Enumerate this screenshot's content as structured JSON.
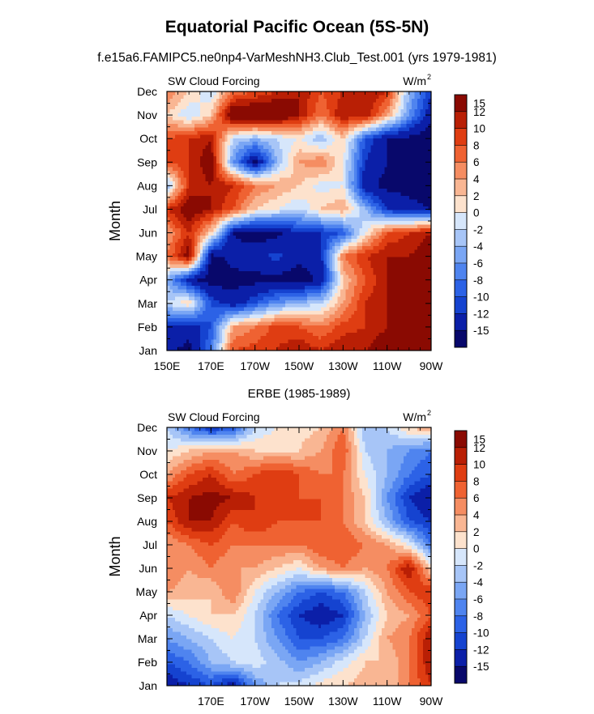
{
  "figure": {
    "title": "Equatorial Pacific Ocean (5S-5N)",
    "subtitle": "f.e15a6.FAMIPC5.ne0np4-VarMeshNH3.Club_Test.001 (yrs 1979-1981)"
  },
  "colorbar": {
    "colors": [
      "#08086b",
      "#0b1fa8",
      "#1543d0",
      "#2c62e6",
      "#4f84ef",
      "#7aa6f4",
      "#a7c5f7",
      "#d6e6fb",
      "#fde2cd",
      "#f9b693",
      "#f58d62",
      "#ef6232",
      "#df3d12",
      "#b91f05",
      "#8a0a02"
    ],
    "labels": [
      "-15",
      "-12",
      "-10",
      "-8",
      "-6",
      "-4",
      "-2",
      "0",
      "2",
      "4",
      "6",
      "8",
      "10",
      "12",
      "15"
    ]
  },
  "chart_data": [
    {
      "type": "heatmap",
      "title": "f.e15a6.FAMIPC5.ne0np4-VarMeshNH3.Club_Test.001 (yrs 1979-1981)",
      "left_label": "SW Cloud Forcing",
      "units_label": "W/m",
      "units_sup": "2",
      "ylabel": "Month",
      "xlim": [
        150,
        270
      ],
      "x_ticks": [
        150,
        170,
        190,
        210,
        230,
        250,
        270
      ],
      "x_tick_labels": [
        "150E",
        "170E",
        "170W",
        "150W",
        "130W",
        "110W",
        "90W"
      ],
      "y_tick_labels": [
        "Jan",
        "Feb",
        "Mar",
        "Apr",
        "May",
        "Jun",
        "Jul",
        "Aug",
        "Sep",
        "Oct",
        "Nov",
        "Dec"
      ],
      "grid_lon_axis": [
        150,
        160,
        170,
        180,
        190,
        200,
        210,
        220,
        230,
        240,
        250,
        260,
        270
      ],
      "levels": [
        -15,
        -12,
        -10,
        -8,
        -6,
        -4,
        -2,
        0,
        2,
        4,
        6,
        8,
        10,
        12,
        15
      ],
      "values": [
        [
          -14,
          -16,
          -8,
          8,
          9,
          10,
          12,
          10,
          12,
          12,
          14,
          15,
          16
        ],
        [
          -13,
          -14,
          -10,
          4,
          6,
          9,
          8,
          6,
          9,
          10,
          12,
          14,
          15
        ],
        [
          -2,
          2,
          -10,
          -14,
          -10,
          -6,
          -4,
          -2,
          4,
          10,
          12,
          15,
          16
        ],
        [
          -4,
          -14,
          -17,
          -16,
          -16,
          -16,
          -17,
          -14,
          2,
          8,
          12,
          14,
          16
        ],
        [
          6,
          14,
          -16,
          -14,
          -13,
          -11,
          -14,
          -13,
          6,
          10,
          12,
          12,
          14
        ],
        [
          4,
          10,
          2,
          -15,
          -17,
          -16,
          -12,
          -12,
          -10,
          0,
          8,
          10,
          12
        ],
        [
          10,
          14,
          12,
          8,
          2,
          0,
          -2,
          2,
          4,
          -4,
          -12,
          -14,
          -15
        ],
        [
          -4,
          10,
          12,
          10,
          6,
          4,
          2,
          -1,
          0,
          -14,
          -16,
          -16,
          -17
        ],
        [
          8,
          10,
          14,
          -6,
          -16,
          -4,
          4,
          6,
          0,
          -12,
          -15,
          -16,
          -17
        ],
        [
          8,
          10,
          12,
          -2,
          -4,
          -2,
          0,
          -4,
          2,
          -10,
          -15,
          -16,
          -17
        ],
        [
          2,
          -2,
          2,
          16,
          16,
          16,
          12,
          6,
          12,
          12,
          4,
          -6,
          -14
        ],
        [
          6,
          2,
          -2,
          6,
          8,
          10,
          12,
          8,
          10,
          12,
          10,
          -4,
          -12
        ]
      ]
    },
    {
      "type": "heatmap",
      "title": "ERBE (1985-1989)",
      "left_label": "SW Cloud Forcing",
      "units_label": "W/m",
      "units_sup": "2",
      "ylabel": "Month",
      "xlim": [
        150,
        270
      ],
      "x_ticks": [
        170,
        190,
        210,
        230,
        250,
        270
      ],
      "x_tick_labels": [
        "170E",
        "170W",
        "150W",
        "130W",
        "110W",
        "90W"
      ],
      "y_tick_labels": [
        "Jan",
        "Feb",
        "Mar",
        "Apr",
        "May",
        "Jun",
        "Jul",
        "Aug",
        "Sep",
        "Oct",
        "Nov",
        "Dec"
      ],
      "grid_lon_axis": [
        150,
        160,
        170,
        180,
        190,
        200,
        210,
        220,
        230,
        240,
        250,
        260,
        270
      ],
      "levels": [
        -15,
        -12,
        -10,
        -8,
        -6,
        -4,
        -2,
        0,
        2,
        4,
        6,
        8,
        10,
        12,
        15
      ],
      "values": [
        [
          -14,
          -12,
          -10,
          -14,
          -6,
          -2,
          -1,
          1,
          2,
          3,
          2,
          6,
          10
        ],
        [
          -10,
          -8,
          -4,
          -2,
          -1,
          -3,
          -6,
          -4,
          -1,
          2,
          2,
          6,
          12
        ],
        [
          -6,
          -4,
          -2,
          0,
          -2,
          -6,
          -10,
          -10,
          -8,
          -2,
          4,
          6,
          12
        ],
        [
          -2,
          0,
          2,
          2,
          -2,
          -8,
          -12,
          -14,
          -12,
          -4,
          2,
          4,
          8
        ],
        [
          4,
          3,
          2,
          6,
          0,
          -4,
          -8,
          -10,
          -8,
          -2,
          4,
          8,
          10
        ],
        [
          6,
          4,
          6,
          4,
          4,
          2,
          0,
          4,
          6,
          4,
          6,
          12,
          2
        ],
        [
          4,
          6,
          8,
          6,
          6,
          6,
          6,
          8,
          8,
          6,
          4,
          0,
          -8
        ],
        [
          8,
          12,
          12,
          8,
          10,
          8,
          8,
          8,
          6,
          2,
          -4,
          -10,
          -12
        ],
        [
          10,
          12,
          13,
          12,
          10,
          10,
          8,
          8,
          6,
          2,
          -6,
          -12,
          -15
        ],
        [
          4,
          8,
          10,
          6,
          8,
          10,
          8,
          6,
          6,
          0,
          -4,
          -8,
          -10
        ],
        [
          0,
          2,
          4,
          4,
          2,
          2,
          2,
          4,
          8,
          -2,
          -4,
          -6,
          -8
        ],
        [
          -2,
          -8,
          -12,
          -10,
          -2,
          0,
          1,
          2,
          6,
          -4,
          -2,
          2,
          4
        ]
      ]
    }
  ]
}
